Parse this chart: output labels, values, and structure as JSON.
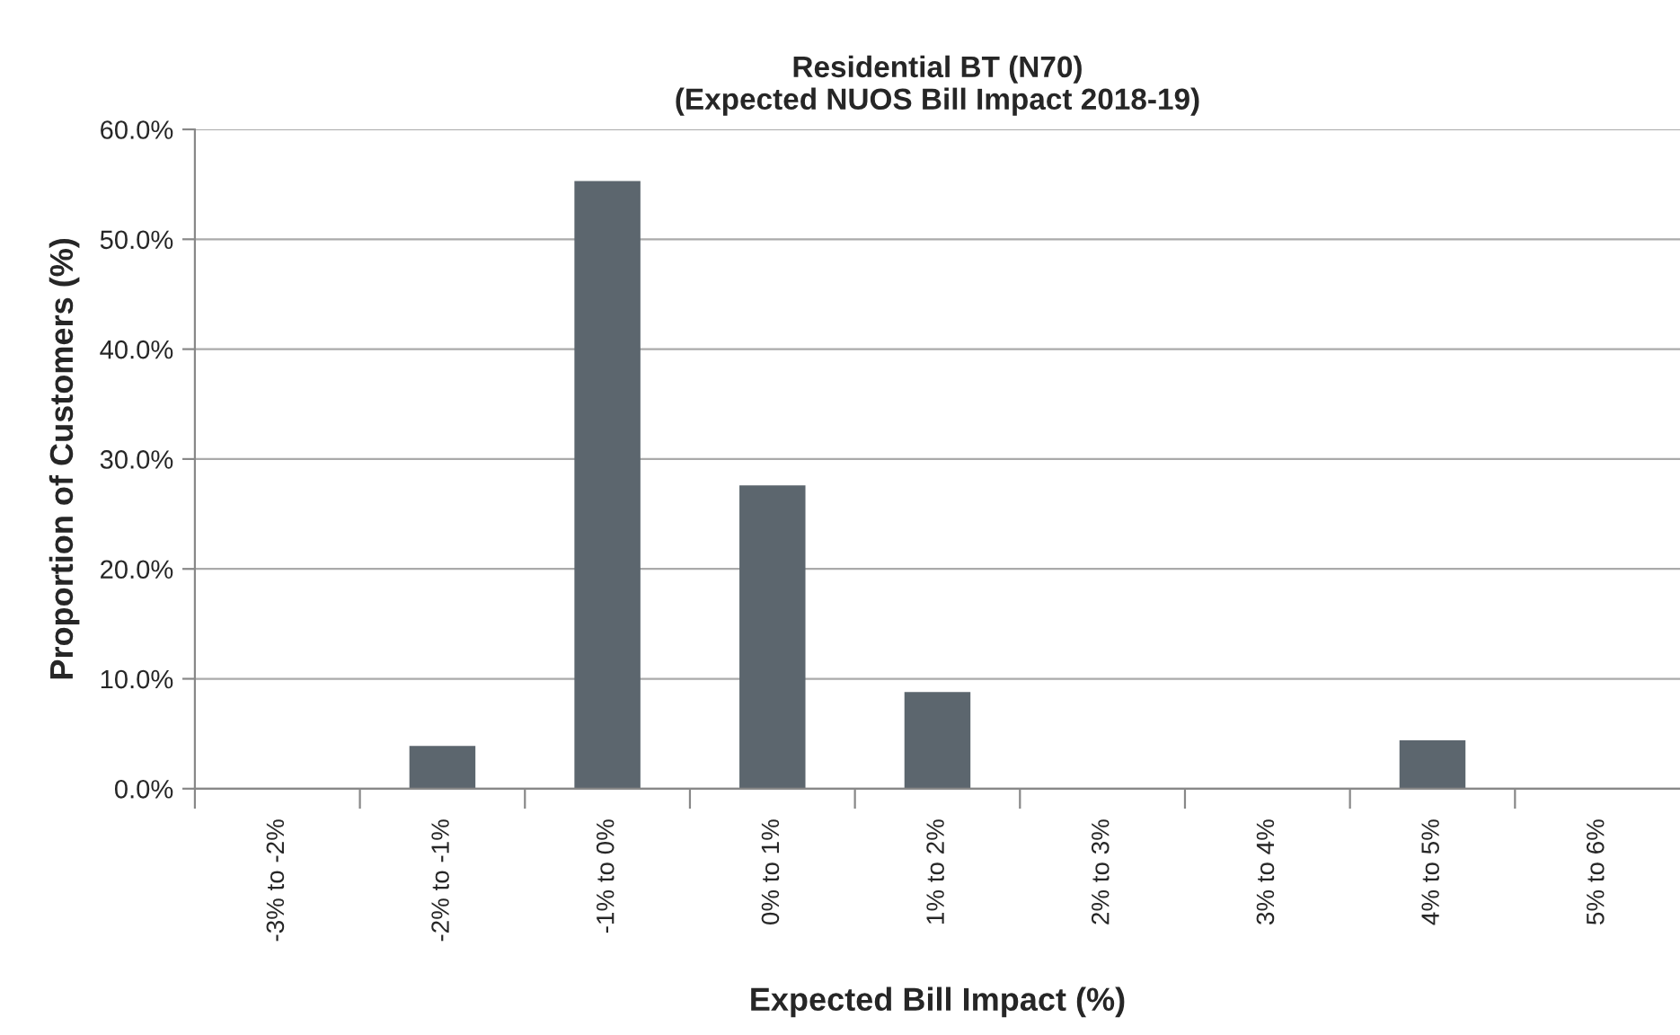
{
  "chart_data": {
    "type": "bar",
    "title": "Residential BT (N70)\n(Expected NUOS Bill Impact 2018-19)",
    "xlabel": "Expected Bill Impact (%)",
    "ylabel": "Proportion of Customers (%)",
    "categories": [
      "-3% to -2%",
      "-2% to -1%",
      "-1% to 0%",
      "0% to 1%",
      "1% to 2%",
      "2% to 3%",
      "3% to 4%",
      "4% to 5%",
      "5% to 6%"
    ],
    "values": [
      0,
      3.9,
      55.3,
      27.6,
      8.8,
      0,
      0,
      4.4,
      0
    ],
    "color": "#5c666e",
    "ylim": [
      0,
      60
    ],
    "yticks": [
      {
        "value": 0,
        "label": "0.0%"
      },
      {
        "value": 10,
        "label": "10.0%"
      },
      {
        "value": 20,
        "label": "20.0%"
      },
      {
        "value": 30,
        "label": "30.0%"
      },
      {
        "value": 40,
        "label": "40.0%"
      },
      {
        "value": 50,
        "label": "50.0%"
      },
      {
        "value": 60,
        "label": "60.0%"
      }
    ],
    "grid": "y"
  }
}
